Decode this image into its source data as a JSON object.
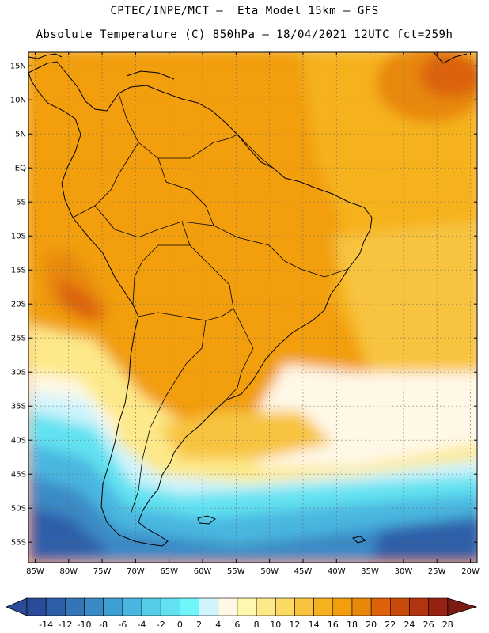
{
  "header": {
    "line1": "CPTEC/INPE/MCT –  Eta Model 15km – GFS",
    "line2": "Absolute Temperature (C) 850hPa – 18/04/2021 12UTC fct=259h"
  },
  "axes": {
    "latitude_labels": [
      "15N",
      "10N",
      "5N",
      "EQ",
      "5S",
      "10S",
      "15S",
      "20S",
      "25S",
      "30S",
      "35S",
      "40S",
      "45S",
      "50S",
      "55S"
    ],
    "longitude_labels": [
      "85W",
      "80W",
      "75W",
      "70W",
      "65W",
      "60W",
      "55W",
      "50W",
      "45W",
      "40W",
      "35W",
      "30W",
      "25W",
      "20W"
    ],
    "lat_range": [
      17,
      -58
    ],
    "lon_range": [
      -86,
      -19
    ],
    "grid": "dotted"
  },
  "legend": {
    "ticks": [
      "-14",
      "-12",
      "-10",
      "-8",
      "-6",
      "-4",
      "-2",
      "0",
      "2",
      "4",
      "6",
      "8",
      "10",
      "12",
      "14",
      "16",
      "18",
      "20",
      "22",
      "24",
      "26",
      "28"
    ],
    "colors": [
      "#2a4a9a",
      "#2f5ea8",
      "#3475b8",
      "#3a8ac6",
      "#3f9fd3",
      "#48b6e0",
      "#55cde9",
      "#62e2f1",
      "#6ff6fb",
      "#d0f4fc",
      "#fff8e6",
      "#fef7b0",
      "#fde98a",
      "#fcd864",
      "#f8c43f",
      "#f5b21e",
      "#f29e0d",
      "#e8880a",
      "#dc620a",
      "#c94a0b",
      "#b23510",
      "#952212",
      "#7a1a12"
    ]
  },
  "palette": {
    "orange_dark": "#dc620a",
    "orange": "#f29e0d",
    "orange_light": "#f5b21e",
    "yellow": "#f8c43f",
    "yellow_light": "#fde98a",
    "cream": "#fff8e6",
    "pale_cyan": "#d0f4fc",
    "cyan": "#62e2f1",
    "blue_light": "#48b6e0",
    "blue": "#3a8ac6",
    "blue_dark": "#2f5ea8"
  }
}
